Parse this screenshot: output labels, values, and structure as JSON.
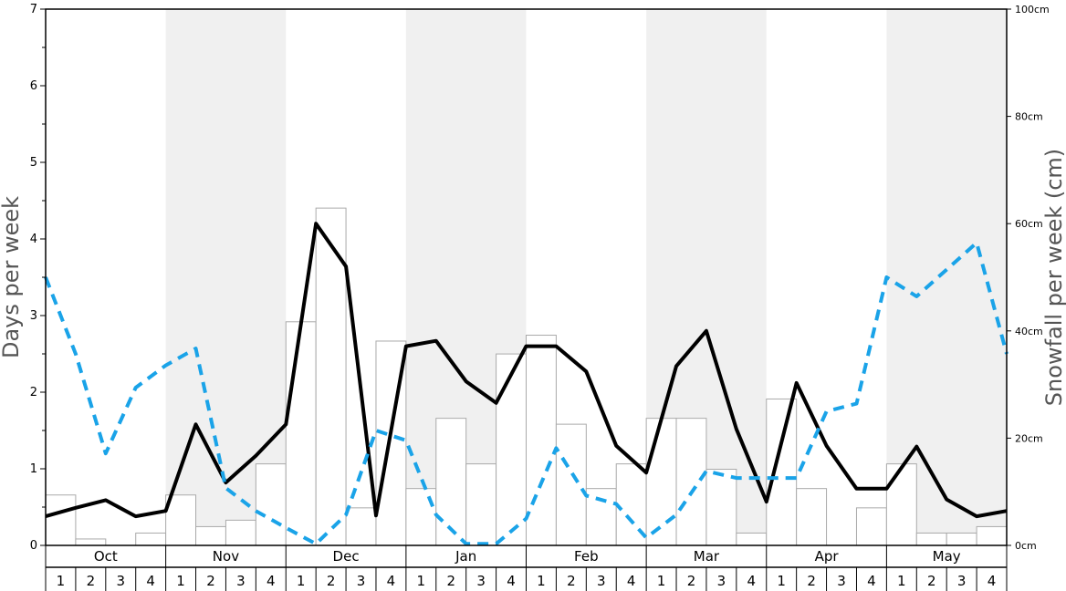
{
  "chart_data": {
    "type": "bar",
    "ylabel_left": "Days per week",
    "ylabel_right": "Snowfall per week (cm)",
    "left_ylim": [
      0,
      7
    ],
    "left_ticks": [
      "0",
      "1",
      "2",
      "3",
      "4",
      "5",
      "6",
      "7"
    ],
    "right_ylim": [
      0,
      100
    ],
    "right_ticks": [
      "0cm",
      "20cm",
      "40cm",
      "60cm",
      "80cm",
      "100cm"
    ],
    "months": [
      "Oct",
      "Nov",
      "Dec",
      "Jan",
      "Feb",
      "Mar",
      "Apr",
      "May"
    ],
    "weeks": [
      "1",
      "2",
      "3",
      "4"
    ],
    "shading": "alternating months shaded",
    "colors": {
      "bars_fill": "#ffffff",
      "bars_stroke": "#aaaaaa",
      "solid_line": "#000000",
      "dashed_line": "#1aa3e8",
      "shade": "#f0f0f0"
    },
    "series": [
      {
        "type": "bar",
        "axis": "right",
        "values": [
          9.4,
          1.2,
          0,
          2.3,
          9.4,
          3.5,
          4.7,
          15.2,
          41.7,
          62.9,
          7.0,
          38.1,
          10.6,
          23.7,
          15.2,
          35.7,
          39.2,
          22.6,
          10.6,
          15.2,
          23.7,
          23.7,
          14.2,
          2.3,
          27.3,
          10.6,
          0,
          7.0,
          15.2,
          2.3,
          2.3,
          3.5
        ]
      },
      {
        "type": "line",
        "style": "solid",
        "axis": "left",
        "values": [
          0.38,
          0.49,
          0.59,
          0.38,
          0.45,
          1.58,
          0.82,
          1.17,
          1.58,
          4.2,
          3.64,
          0.39,
          2.6,
          2.67,
          2.14,
          1.86,
          2.6,
          2.6,
          2.27,
          1.3,
          0.95,
          2.34,
          2.8,
          1.52,
          0.57,
          2.12,
          1.3,
          0.74,
          0.74,
          1.29,
          0.6,
          0.38,
          0.45
        ]
      },
      {
        "type": "line",
        "style": "dashed",
        "axis": "left",
        "values": [
          3.5,
          2.5,
          1.2,
          2.06,
          2.35,
          2.57,
          0.75,
          0.45,
          0.23,
          0.02,
          0.4,
          1.5,
          1.37,
          0.4,
          0.02,
          0.02,
          0.35,
          1.27,
          0.65,
          0.54,
          0.1,
          0.4,
          0.97,
          0.88,
          0.88,
          0.88,
          1.75,
          1.85,
          3.5,
          3.25,
          3.6,
          3.95,
          2.5
        ]
      }
    ]
  }
}
